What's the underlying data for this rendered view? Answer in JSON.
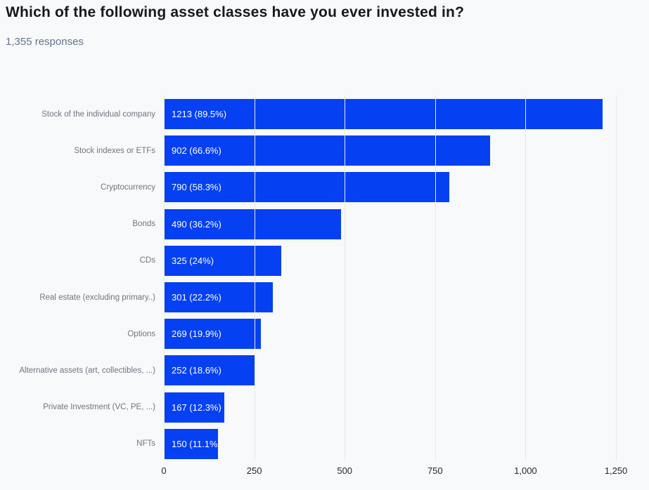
{
  "header": {
    "title": "Which of the following asset classes have you ever invested in?",
    "subtitle": "1,355 responses"
  },
  "chart_data": {
    "type": "bar",
    "orientation": "horizontal",
    "title": "Which of the following asset classes have you ever invested in?",
    "subtitle": "1,355 responses",
    "categories": [
      "Stock of the individual company",
      "Stock indexes or ETFs",
      "Cryptocurrency",
      "Bonds",
      "CDs",
      "Real estate (excluding primary..)",
      "Options",
      "Alternative assets (art, collectibles, ...)",
      "Private Investment (VC, PE, ...)",
      "NFTs"
    ],
    "values": [
      1213,
      902,
      790,
      490,
      325,
      301,
      269,
      252,
      167,
      150
    ],
    "percentages": [
      "89.5%",
      "66.6%",
      "58.3%",
      "36.2%",
      "24%",
      "22.2%",
      "19.9%",
      "18.6%",
      "12.3%",
      "11.1%"
    ],
    "bar_labels": [
      "1213 (89.5%)",
      "902 (66.6%)",
      "790 (58.3%)",
      "490 (36.2%)",
      "325 (24%)",
      "301 (22.2%)",
      "269 (19.9%)",
      "252 (18.6%)",
      "167 (12.3%)",
      "150 (11.1%)"
    ],
    "xlim": [
      0,
      1250
    ],
    "xticks": [
      0,
      250,
      500,
      750,
      1000,
      1250
    ],
    "xtick_labels": [
      "0",
      "250",
      "500",
      "750",
      "1,000",
      "1,250"
    ],
    "grid": true,
    "legend": false,
    "colors": {
      "bar": "#0540f2",
      "background": "#f8f9fa",
      "gridline": "#e6e8eb",
      "bar_label_text": "#ffffff"
    }
  }
}
